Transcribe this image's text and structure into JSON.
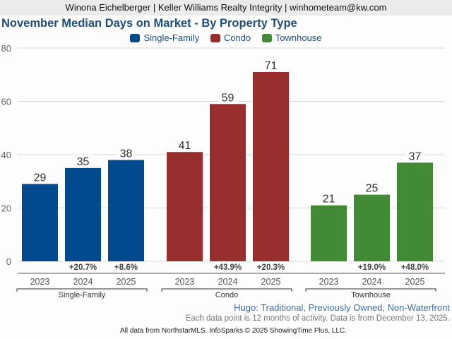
{
  "header": {
    "attribution": "Winona Eichelberger | Keller Williams Realty Integrity | winhometeam@kw.com"
  },
  "chart_data": {
    "type": "bar",
    "title": "November Median Days on Market - By Property Type",
    "xlabel": "",
    "ylabel": "",
    "ylim": [
      0,
      80
    ],
    "yticks": [
      0,
      20,
      40,
      60,
      80
    ],
    "grid": true,
    "legend_position": "top-center",
    "groups": [
      {
        "name": "Single-Family",
        "color": "#004a8d",
        "categories": [
          "2023",
          "2024",
          "2025"
        ],
        "values": [
          29,
          35,
          38
        ],
        "changes": [
          "",
          "+20.7%",
          "+8.6%"
        ]
      },
      {
        "name": "Condo",
        "color": "#992e2f",
        "categories": [
          "2023",
          "2024",
          "2025"
        ],
        "values": [
          41,
          59,
          71
        ],
        "changes": [
          "",
          "+43.9%",
          "+20.3%"
        ]
      },
      {
        "name": "Townhouse",
        "color": "#438a36",
        "categories": [
          "2023",
          "2024",
          "2025"
        ],
        "values": [
          21,
          25,
          37
        ],
        "changes": [
          "",
          "+19.0%",
          "+48.0%"
        ]
      }
    ]
  },
  "legend": [
    {
      "label": "Single-Family",
      "color": "#004a8d"
    },
    {
      "label": "Condo",
      "color": "#992e2f"
    },
    {
      "label": "Townhouse",
      "color": "#438a36"
    }
  ],
  "subtitle": "Hugo: Traditional, Previously Owned, Non-Waterfront",
  "note": "Each data point is 12 months of activity. Data is from December 13, 2025.",
  "footer": "All data from NorthstarMLS. InfoSparks © 2025 ShowingTime Plus, LLC."
}
